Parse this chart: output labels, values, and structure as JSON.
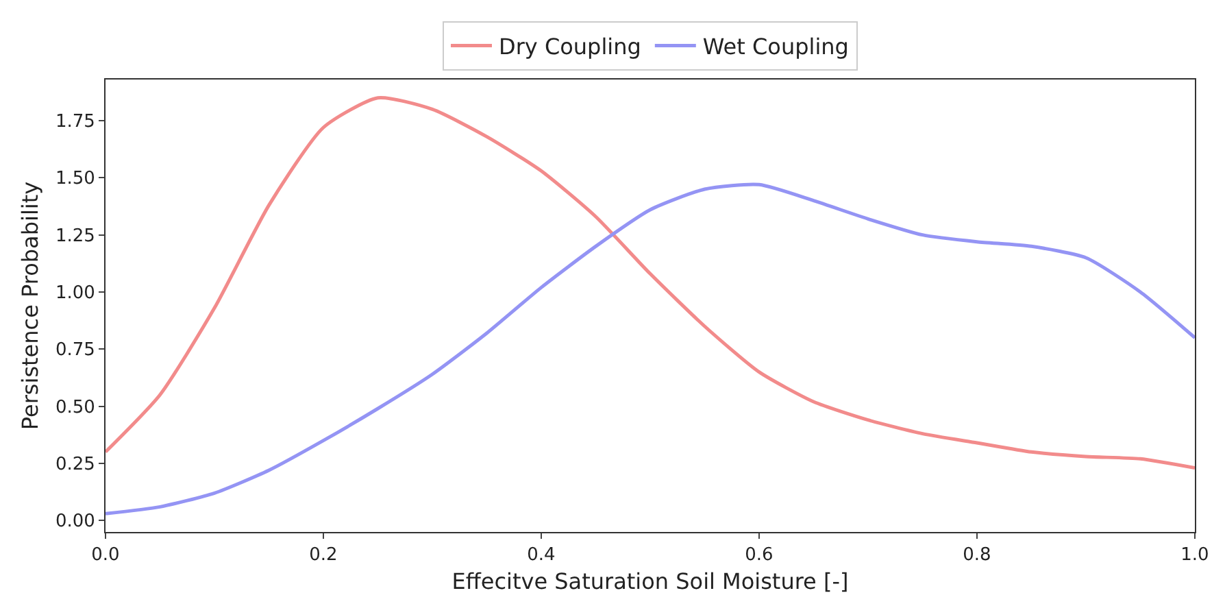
{
  "chart_data": {
    "type": "line",
    "xlabel": "Effecitve Saturation Soil Moisture [-]",
    "ylabel": "Persistence Probability",
    "x": [
      0,
      0.05,
      0.1,
      0.15,
      0.2,
      0.25,
      0.3,
      0.35,
      0.4,
      0.45,
      0.5,
      0.55,
      0.6,
      0.65,
      0.7,
      0.75,
      0.8,
      0.85,
      0.9,
      0.95,
      1.0
    ],
    "series": [
      {
        "name": "Dry Coupling",
        "color": "#f28b8b",
        "values": [
          0.3,
          0.55,
          0.93,
          1.38,
          1.72,
          1.85,
          1.8,
          1.68,
          1.53,
          1.33,
          1.08,
          0.85,
          0.65,
          0.52,
          0.44,
          0.38,
          0.34,
          0.3,
          0.28,
          0.27,
          0.23
        ]
      },
      {
        "name": "Wet Coupling",
        "color": "#9494f4",
        "values": [
          0.03,
          0.06,
          0.12,
          0.22,
          0.35,
          0.49,
          0.64,
          0.82,
          1.02,
          1.2,
          1.36,
          1.45,
          1.47,
          1.4,
          1.32,
          1.25,
          1.22,
          1.2,
          1.15,
          1.0,
          0.8
        ]
      }
    ],
    "xlim": [
      0,
      1.0
    ],
    "xticks": [
      {
        "value": 0,
        "label": "0.0"
      },
      {
        "value": 0.2,
        "label": "0.2"
      },
      {
        "value": 0.4,
        "label": "0.4"
      },
      {
        "value": 0.6,
        "label": "0.6"
      },
      {
        "value": 0.8,
        "label": "0.8"
      },
      {
        "value": 1.0,
        "label": "1.0"
      }
    ],
    "ylim": [
      -0.05,
      1.93
    ],
    "yticks": [
      {
        "value": 0,
        "label": "0.00"
      },
      {
        "value": 0.25,
        "label": "0.25"
      },
      {
        "value": 0.5,
        "label": "0.50"
      },
      {
        "value": 0.75,
        "label": "0.75"
      },
      {
        "value": 1.0,
        "label": "1.00"
      },
      {
        "value": 1.25,
        "label": "1.25"
      },
      {
        "value": 1.5,
        "label": "1.50"
      },
      {
        "value": 1.75,
        "label": "1.75"
      }
    ],
    "grid": false,
    "legend": "top",
    "marker": "none",
    "line_style": "solid"
  }
}
